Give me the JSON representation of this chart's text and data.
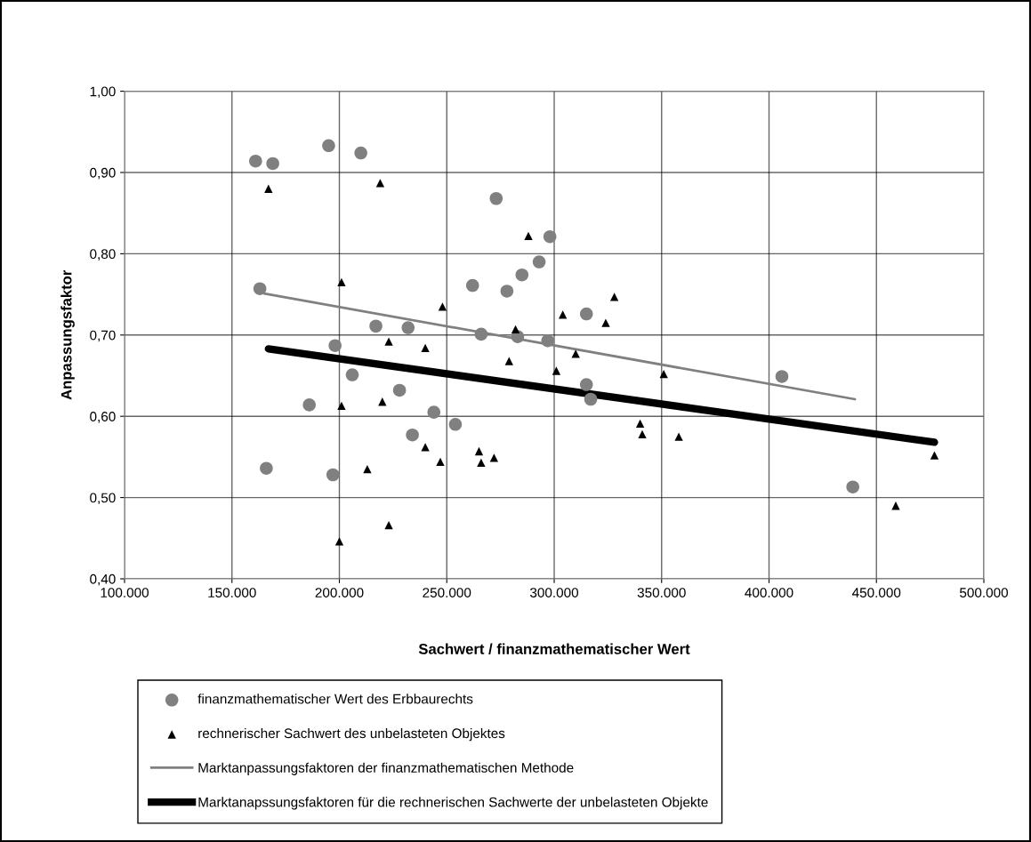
{
  "chart_data": {
    "type": "scatter",
    "xlabel": "Sachwert / finanzmathematischer Wert",
    "ylabel": "Anpassungsfaktor",
    "xlim": [
      100000,
      500000
    ],
    "xticks": [
      {
        "value": 100000,
        "label": "100.000"
      },
      {
        "value": 150000,
        "label": "150.000"
      },
      {
        "value": 200000,
        "label": "200.000"
      },
      {
        "value": 250000,
        "label": "250.000"
      },
      {
        "value": 300000,
        "label": "300.000"
      },
      {
        "value": 350000,
        "label": "350.000"
      },
      {
        "value": 400000,
        "label": "400.000"
      },
      {
        "value": 450000,
        "label": "450.000"
      },
      {
        "value": 500000,
        "label": "500.000"
      }
    ],
    "ylim": [
      0.4,
      1.0
    ],
    "yticks": [
      {
        "value": 0.4,
        "label": "0,40"
      },
      {
        "value": 0.5,
        "label": "0,50"
      },
      {
        "value": 0.6,
        "label": "0,60"
      },
      {
        "value": 0.7,
        "label": "0,70"
      },
      {
        "value": 0.8,
        "label": "0,80"
      },
      {
        "value": 0.9,
        "label": "0,90"
      },
      {
        "value": 1.0,
        "label": "1,00"
      }
    ],
    "grid": true,
    "legend": "bottom",
    "series": [
      {
        "name": "finanzmathematischer Wert des Erbbaurechts",
        "marker": "circle",
        "color": "#808080",
        "x": [
          161000,
          169000,
          195000,
          163000,
          198000,
          186000,
          166000,
          197000,
          210000,
          273000,
          298000,
          293000,
          285000,
          262000,
          278000,
          217000,
          232000,
          266000,
          283000,
          297000,
          206000,
          228000,
          244000,
          254000,
          234000,
          315000,
          315000,
          317000,
          406000,
          439000
        ],
        "values": [
          0.914,
          0.911,
          0.933,
          0.757,
          0.687,
          0.614,
          0.536,
          0.528,
          0.924,
          0.868,
          0.821,
          0.79,
          0.774,
          0.761,
          0.754,
          0.711,
          0.709,
          0.701,
          0.698,
          0.693,
          0.651,
          0.632,
          0.605,
          0.59,
          0.577,
          0.726,
          0.639,
          0.621,
          0.649,
          0.513
        ]
      },
      {
        "name": "rechnerischer Sachwert des unbelasteten Objektes",
        "marker": "triangle",
        "color": "#000000",
        "x": [
          167000,
          201000,
          201000,
          200000,
          219000,
          288000,
          304000,
          248000,
          282000,
          223000,
          240000,
          279000,
          301000,
          220000,
          240000,
          247000,
          265000,
          266000,
          272000,
          213000,
          223000,
          328000,
          324000,
          310000,
          351000,
          340000,
          341000,
          358000,
          477000,
          459000
        ],
        "values": [
          0.88,
          0.765,
          0.613,
          0.446,
          0.887,
          0.822,
          0.725,
          0.735,
          0.707,
          0.692,
          0.684,
          0.668,
          0.656,
          0.618,
          0.562,
          0.544,
          0.557,
          0.543,
          0.549,
          0.535,
          0.466,
          0.747,
          0.715,
          0.677,
          0.652,
          0.591,
          0.578,
          0.575,
          0.552,
          0.49
        ]
      },
      {
        "name": "Marktanpassungsfaktoren der finanzmathematischen Methode",
        "type": "line",
        "marker": "none",
        "line_style": "solid",
        "color": "#808080",
        "x": [
          165000,
          440000
        ],
        "values": [
          0.751,
          0.621
        ]
      },
      {
        "name": "Marktanapssungsfaktoren für die rechnerischen Sachwerte der unbelasteten Objekte",
        "type": "line",
        "marker": "none",
        "line_style": "solid",
        "color": "#000000",
        "x": [
          167000,
          477000
        ],
        "values": [
          0.683,
          0.568
        ]
      }
    ]
  }
}
